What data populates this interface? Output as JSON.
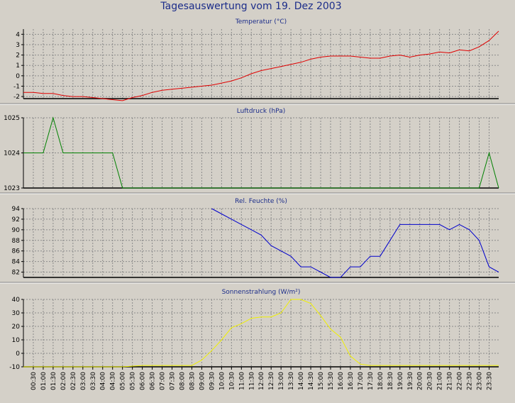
{
  "window": {
    "title": "Tagesauswertung vom 19. Dez 2003"
  },
  "colors": {
    "background": "#d4d0c8",
    "plot_background": "#d4d0c8",
    "grid": "#8a8a8a",
    "axis": "#000000",
    "title_text": "#1c2d8a",
    "temperature": "#e00000",
    "pressure": "#008000",
    "humidity": "#0000cc",
    "radiation": "#f0f000"
  },
  "time_labels": [
    "00:30",
    "01:00",
    "01:30",
    "02:00",
    "02:30",
    "03:00",
    "03:30",
    "04:00",
    "04:30",
    "05:00",
    "05:30",
    "06:00",
    "06:30",
    "07:00",
    "07:30",
    "08:00",
    "08:30",
    "09:00",
    "09:30",
    "10:00",
    "10:30",
    "11:00",
    "11:30",
    "12:00",
    "12:30",
    "13:00",
    "13:30",
    "14:00",
    "14:30",
    "15:00",
    "15:30",
    "16:00",
    "16:30",
    "17:00",
    "17:30",
    "18:00",
    "18:30",
    "19:00",
    "19:30",
    "20:00",
    "20:30",
    "21:00",
    "21:30",
    "22:00",
    "22:30",
    "23:00",
    "23:30"
  ],
  "chart_data": [
    {
      "type": "line",
      "title": "Temperatur (°C)",
      "xlabel": "",
      "ylabel": "",
      "x_range": [
        "00:00",
        "23:59"
      ],
      "ylim": [
        -2.2,
        4.5
      ],
      "yticks": [
        -2,
        -1,
        0,
        1,
        2,
        3,
        4
      ],
      "grid": true,
      "series": [
        {
          "color": "#e00000",
          "x": [
            "00:00",
            "00:30",
            "01:00",
            "01:30",
            "02:00",
            "02:30",
            "03:00",
            "03:30",
            "04:00",
            "04:30",
            "05:00",
            "05:30",
            "06:00",
            "06:30",
            "07:00",
            "07:30",
            "08:00",
            "08:30",
            "09:00",
            "09:30",
            "10:00",
            "10:30",
            "11:00",
            "11:30",
            "12:00",
            "12:30",
            "13:00",
            "13:30",
            "14:00",
            "14:30",
            "15:00",
            "15:30",
            "16:00",
            "16:30",
            "17:00",
            "17:30",
            "18:00",
            "18:30",
            "19:00",
            "19:30",
            "20:00",
            "20:30",
            "21:00",
            "21:30",
            "22:00",
            "22:30",
            "23:00",
            "23:30",
            "23:59"
          ],
          "y": [
            -1.6,
            -1.6,
            -1.7,
            -1.7,
            -1.9,
            -2.0,
            -2.0,
            -2.1,
            -2.2,
            -2.3,
            -2.4,
            -2.1,
            -1.9,
            -1.6,
            -1.4,
            -1.3,
            -1.2,
            -1.1,
            -1.0,
            -0.9,
            -0.7,
            -0.5,
            -0.2,
            0.2,
            0.5,
            0.7,
            0.9,
            1.1,
            1.3,
            1.6,
            1.8,
            1.9,
            1.9,
            1.9,
            1.8,
            1.7,
            1.7,
            1.9,
            2.0,
            1.8,
            2.0,
            2.1,
            2.3,
            2.2,
            2.5,
            2.4,
            2.8,
            3.4,
            4.3
          ]
        }
      ]
    },
    {
      "type": "line",
      "title": "Luftdruck (hPa)",
      "xlabel": "",
      "ylabel": "",
      "x_range": [
        "00:00",
        "23:59"
      ],
      "ylim": [
        1023,
        1025
      ],
      "yticks": [
        1023,
        1024,
        1025
      ],
      "grid": true,
      "series": [
        {
          "color": "#008000",
          "x": [
            "00:00",
            "01:00",
            "01:30",
            "02:00",
            "04:30",
            "05:00",
            "23:00",
            "23:30",
            "23:59"
          ],
          "y": [
            1024,
            1024,
            1025,
            1024,
            1024,
            1023,
            1023,
            1024,
            1023
          ]
        }
      ]
    },
    {
      "type": "line",
      "title": "Rel. Feuchte (%)",
      "xlabel": "",
      "ylabel": "",
      "x_range": [
        "00:00",
        "23:59"
      ],
      "ylim": [
        81,
        94
      ],
      "yticks": [
        82,
        84,
        86,
        88,
        90,
        92,
        94
      ],
      "grid": true,
      "series": [
        {
          "color": "#0000cc",
          "x": [
            "09:30",
            "10:00",
            "10:30",
            "11:00",
            "11:30",
            "12:00",
            "12:30",
            "13:00",
            "13:30",
            "14:00",
            "14:30",
            "15:00",
            "15:30",
            "16:00",
            "16:30",
            "17:00",
            "17:30",
            "18:00",
            "18:30",
            "19:00",
            "19:30",
            "20:00",
            "20:30",
            "21:00",
            "21:30",
            "22:00",
            "22:30",
            "23:00",
            "23:30",
            "23:59"
          ],
          "y": [
            94,
            93,
            92,
            91,
            90,
            89,
            87,
            86,
            85,
            83,
            83,
            82,
            81,
            81,
            83,
            83,
            85,
            85,
            88,
            91,
            91,
            91,
            91,
            91,
            90,
            91,
            90,
            88,
            83,
            82
          ]
        }
      ]
    },
    {
      "type": "line",
      "title": "Sonnenstrahlung (W/m²)",
      "xlabel": "",
      "ylabel": "",
      "x_range": [
        "00:00",
        "23:59"
      ],
      "ylim": [
        -10,
        40
      ],
      "yticks": [
        -10,
        0,
        10,
        20,
        30,
        40
      ],
      "grid": true,
      "series": [
        {
          "color": "#f0f000",
          "x": [
            "00:00",
            "01:00",
            "02:00",
            "03:00",
            "04:00",
            "05:00",
            "06:00",
            "07:00",
            "07:30",
            "08:00",
            "08:30",
            "09:00",
            "09:30",
            "10:00",
            "10:30",
            "11:00",
            "11:30",
            "12:00",
            "12:30",
            "13:00",
            "13:30",
            "14:00",
            "14:30",
            "15:00",
            "15:30",
            "16:00",
            "16:30",
            "17:00",
            "17:30",
            "18:00",
            "19:00",
            "20:00",
            "21:00",
            "22:00",
            "23:00",
            "23:59"
          ],
          "y": [
            -10,
            -10,
            -10,
            -10,
            -10,
            -10,
            -9,
            -9,
            -9,
            -9,
            -9,
            -5,
            2,
            10,
            19,
            22,
            26,
            27,
            27,
            30,
            40,
            40,
            37,
            28,
            18,
            12,
            -2,
            -8,
            -9,
            -9,
            -9,
            -9,
            -9,
            -9,
            -9,
            -9
          ]
        }
      ]
    }
  ]
}
